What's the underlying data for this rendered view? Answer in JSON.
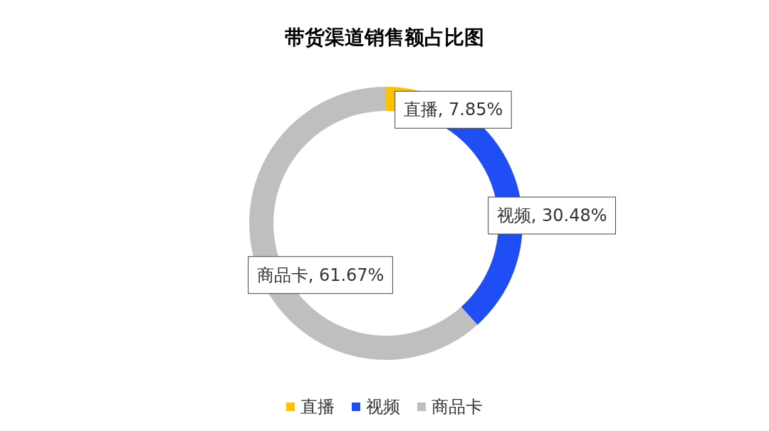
{
  "chart_data": {
    "type": "donut",
    "title": "带货渠道销售额占比图",
    "categories": [
      "直播",
      "视频",
      "商品卡"
    ],
    "values": [
      7.85,
      30.48,
      61.67
    ],
    "colors": [
      "#ffc000",
      "#1f4ef5",
      "#bfbfbf"
    ],
    "value_labels": [
      "直播, 7.85%",
      "视频, 30.48%",
      "商品卡, 61.67%"
    ],
    "legend": "bottom"
  }
}
